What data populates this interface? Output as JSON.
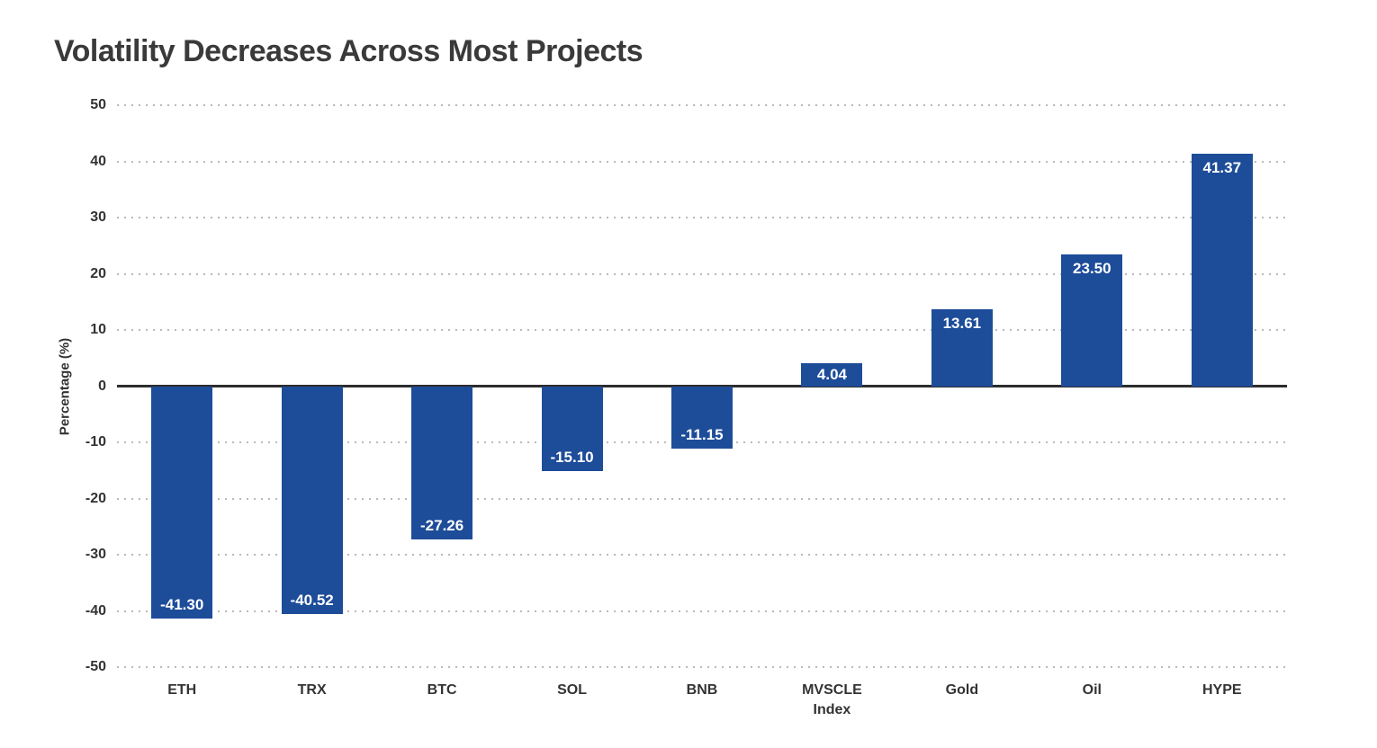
{
  "header": {
    "title": "Volatility Decreases Across Most Projects"
  },
  "chart_data": {
    "type": "bar",
    "title": "Volatility Decreases Across Most Projects",
    "categories": [
      "ETH",
      "TRX",
      "BTC",
      "SOL",
      "BNB",
      "MVSCLE\nIndex",
      "Gold",
      "Oil",
      "HYPE"
    ],
    "values": [
      -41.3,
      -40.52,
      -27.26,
      -15.1,
      -11.15,
      4.04,
      13.61,
      23.5,
      41.37
    ],
    "value_labels": [
      "-41.30",
      "-40.52",
      "-27.26",
      "-15.10",
      "-11.15",
      "4.04",
      "13.61",
      "23.50",
      "41.37"
    ],
    "xlabel": "",
    "ylabel": "Percentage (%)",
    "ylim": [
      -50,
      50
    ],
    "yticks": [
      50,
      40,
      30,
      20,
      10,
      0,
      -10,
      -20,
      -30,
      -40,
      -50
    ],
    "grid": "horizontal dotted gridlines at every 10, solid dark line at 0",
    "legend_position": "none",
    "colors": {
      "bar": "#1d4c99",
      "value_label": "#ffffff",
      "zero_line": "#2d2d2d",
      "gridline": "#b9b9b9",
      "tick_text": "#333333",
      "title_text": "#3a3a3a"
    }
  }
}
